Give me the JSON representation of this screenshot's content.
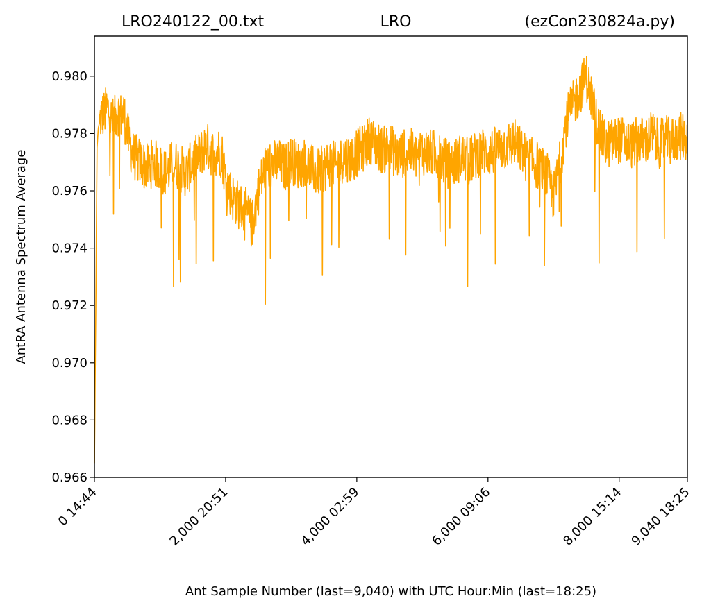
{
  "chart_data": {
    "type": "line",
    "title": {
      "left": "LRO240122_00.txt",
      "center": "LRO",
      "right": "(ezCon230824a.py)"
    },
    "xlabel": "Ant Sample Number (last=9,040) with UTC Hour:Min (last=18:25)",
    "ylabel": "AntRA Antenna Spectrum Average",
    "xlim": [
      0,
      9040
    ],
    "ylim": [
      0.966,
      0.9814
    ],
    "y_ticks": [
      {
        "value": 0.966,
        "label": "0.966"
      },
      {
        "value": 0.968,
        "label": "0.968"
      },
      {
        "value": 0.97,
        "label": "0.970"
      },
      {
        "value": 0.972,
        "label": "0.972"
      },
      {
        "value": 0.974,
        "label": "0.974"
      },
      {
        "value": 0.976,
        "label": "0.976"
      },
      {
        "value": 0.978,
        "label": "0.978"
      },
      {
        "value": 0.98,
        "label": "0.980"
      }
    ],
    "x_ticks": [
      {
        "value": 0,
        "label": "0  14:44"
      },
      {
        "value": 2000,
        "label": "2,000  20:51"
      },
      {
        "value": 4000,
        "label": "4,000  02:59"
      },
      {
        "value": 6000,
        "label": "6,000  09:06"
      },
      {
        "value": 8000,
        "label": "8,000  15:14"
      },
      {
        "value": 9040,
        "label": "9,040  18:25"
      }
    ],
    "grid": false,
    "series": [
      {
        "color": "#FFA500",
        "x": [
          0,
          20,
          40,
          60,
          100,
          150,
          200,
          250,
          300,
          350,
          400,
          450,
          500,
          550,
          600,
          700,
          800,
          900,
          1000,
          1100,
          1200,
          1300,
          1400,
          1500,
          1600,
          1700,
          1800,
          1900,
          1950,
          2000,
          2100,
          2200,
          2300,
          2400,
          2500,
          2600,
          2700,
          2800,
          2900,
          3000,
          3100,
          3200,
          3300,
          3400,
          3500,
          3600,
          3700,
          3800,
          3900,
          4000,
          4100,
          4200,
          4300,
          4400,
          4500,
          4600,
          4700,
          4800,
          4900,
          5000,
          5100,
          5200,
          5300,
          5400,
          5500,
          5600,
          5700,
          5800,
          5900,
          6000,
          6100,
          6200,
          6300,
          6400,
          6500,
          6600,
          6700,
          6800,
          6900,
          7000,
          7100,
          7200,
          7300,
          7400,
          7500,
          7600,
          7700,
          7800,
          7900,
          8000,
          8100,
          8200,
          8300,
          8400,
          8500,
          8600,
          8700,
          8800,
          8900,
          9000,
          9040
        ],
        "y": [
          0.9665,
          0.9716,
          0.9775,
          0.9782,
          0.9786,
          0.9787,
          0.9789,
          0.9785,
          0.9784,
          0.9788,
          0.9786,
          0.9787,
          0.978,
          0.9775,
          0.9772,
          0.977,
          0.9768,
          0.977,
          0.9768,
          0.9766,
          0.977,
          0.9768,
          0.9766,
          0.977,
          0.9772,
          0.9776,
          0.9773,
          0.9774,
          0.9772,
          0.9764,
          0.9758,
          0.9755,
          0.9753,
          0.9748,
          0.976,
          0.9768,
          0.9769,
          0.977,
          0.9768,
          0.9771,
          0.9769,
          0.977,
          0.9768,
          0.9766,
          0.9768,
          0.977,
          0.9768,
          0.9772,
          0.9771,
          0.9773,
          0.9775,
          0.9778,
          0.9776,
          0.9774,
          0.9776,
          0.9772,
          0.9773,
          0.9774,
          0.9772,
          0.9774,
          0.9773,
          0.9773,
          0.9771,
          0.9769,
          0.977,
          0.9772,
          0.977,
          0.9772,
          0.9774,
          0.9773,
          0.9774,
          0.9775,
          0.9776,
          0.9777,
          0.9774,
          0.9771,
          0.977,
          0.9768,
          0.9765,
          0.9758,
          0.977,
          0.9785,
          0.979,
          0.9795,
          0.98,
          0.979,
          0.978,
          0.9776,
          0.9777,
          0.9778,
          0.9777,
          0.9776,
          0.9778,
          0.9777,
          0.978,
          0.9776,
          0.9778,
          0.9777,
          0.9779,
          0.9779,
          0.9778
        ]
      }
    ]
  }
}
